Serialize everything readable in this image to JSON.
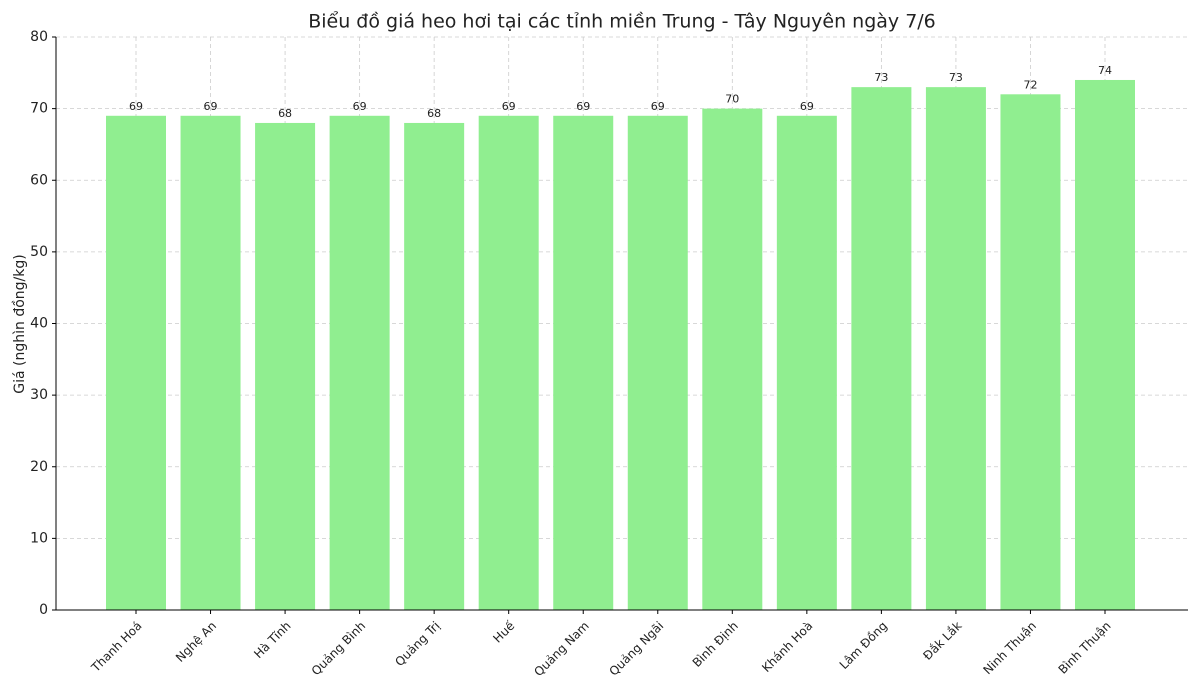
{
  "chart_data": {
    "type": "bar",
    "title": "Biểu đồ giá heo hơi tại các tỉnh miền Trung - Tây Nguyên ngày 7/6",
    "y_label": "Giá (nghìn đồng/kg)",
    "categories": [
      "Thanh Hoá",
      "Nghệ An",
      "Hà Tĩnh",
      "Quảng Bình",
      "Quảng Trị",
      "Huế",
      "Quảng Nam",
      "Quảng Ngãi",
      "Bình Định",
      "Khánh Hoà",
      "Lâm Đồng",
      "Đắk Lắk",
      "Ninh Thuận",
      "Bình Thuận"
    ],
    "values": [
      69,
      69,
      68,
      69,
      68,
      69,
      69,
      69,
      70,
      69,
      73,
      73,
      72,
      74
    ],
    "color": "#90ee90",
    "ylim": [
      0,
      80
    ],
    "yticks": [
      0,
      10,
      20,
      30,
      40,
      50,
      60,
      70,
      80
    ],
    "grid": true
  }
}
